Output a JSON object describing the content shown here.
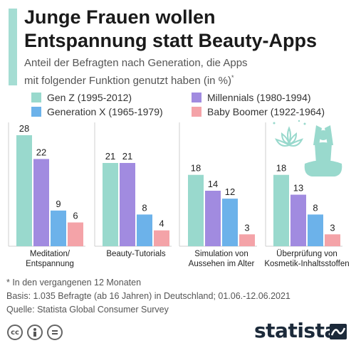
{
  "title_lines": [
    "Junge Frauen wollen",
    "Entspannung statt Beauty-Apps"
  ],
  "subtitle_lines": [
    "Anteil der Befragten nach Generation, die Apps",
    "mit folgender Funktion genutzt haben (in %)"
  ],
  "subtitle_mark": "*",
  "footer": {
    "note": "* In den vergangenen 12 Monaten",
    "basis": "Basis: 1.035 Befragte (ab 16 Jahren) in Deutschland; 01.06.-12.06.2021",
    "source": "Quelle: Statista Global Consumer Survey"
  },
  "brand": "statista",
  "icons": [
    "creative-commons-icon",
    "attribution-icon",
    "no-derivatives-icon",
    "statista-logo-icon",
    "yoga-illustration-icon"
  ],
  "chart_data": {
    "type": "bar",
    "categories": [
      [
        "Meditation/",
        "Entspannung"
      ],
      [
        "Beauty-Tutorials"
      ],
      [
        "Simulation von",
        "Aussehen im Alter"
      ],
      [
        "Überprüfung von",
        "Kosmetik-Inhaltsstoffen"
      ]
    ],
    "series": [
      {
        "name": "Gen Z (1995-2012)",
        "color": "#99d9cd",
        "values": [
          28,
          21,
          18,
          18
        ]
      },
      {
        "name": "Millennials (1980-1994)",
        "color": "#a18be0",
        "values": [
          22,
          21,
          14,
          13
        ]
      },
      {
        "name": "Generation X (1965-1979)",
        "color": "#6cb2ea",
        "values": [
          9,
          8,
          12,
          8
        ]
      },
      {
        "name": "Baby Boomer (1922-1964)",
        "color": "#f4a3a8",
        "values": [
          6,
          4,
          3,
          3
        ]
      }
    ],
    "ylim": [
      0,
      28
    ],
    "grid": false,
    "legend_position": "top"
  }
}
